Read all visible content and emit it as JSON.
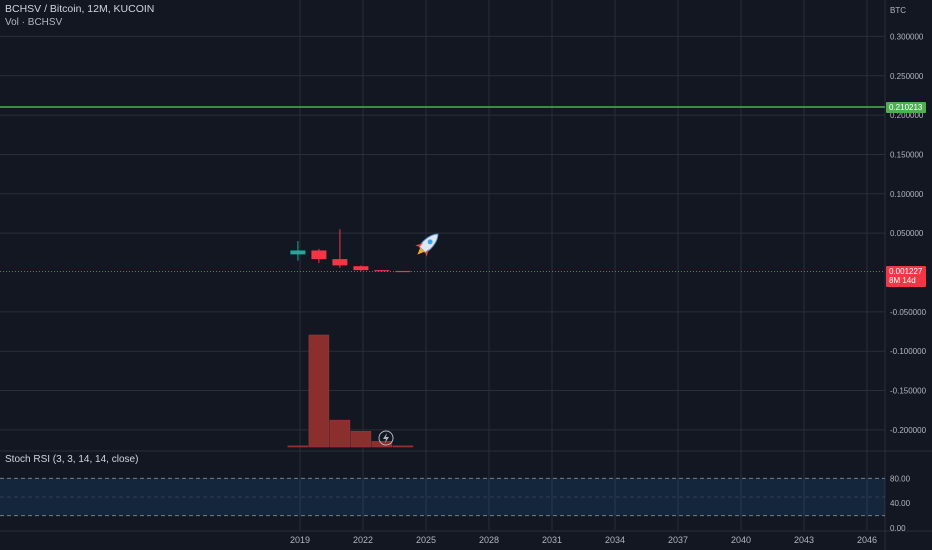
{
  "legend": {
    "title": "BCHSV / Bitcoin, 12M, KUCOIN",
    "volume": "Vol · BCHSV",
    "rsi": "Stoch RSI (3, 3, 14, 14, close)"
  },
  "price_axis": {
    "currency": "BTC",
    "ticks": [
      "0.300000",
      "0.250000",
      "0.200000",
      "0.150000",
      "0.100000",
      "0.050000",
      "-0.050000",
      "-0.100000",
      "-0.150000",
      "-0.200000"
    ]
  },
  "price_tags": {
    "horizontal_line_value": "0.210213",
    "last_price": "0.001227",
    "countdown": "8M 14d"
  },
  "rsi_axis": {
    "ticks": [
      "80.00",
      "40.00",
      "0.00"
    ]
  },
  "time_axis": {
    "ticks": [
      "2019",
      "2022",
      "2025",
      "2028",
      "2031",
      "2034",
      "2037",
      "2040",
      "2043",
      "2046"
    ]
  },
  "colors": {
    "background": "#131722",
    "grid": "#2a2e39",
    "up": "#26a69a",
    "down": "#f23645",
    "horizontal_line": "#4caf50",
    "volume": "#8b2e2e"
  },
  "chart_data": {
    "type": "candlestick",
    "x_unit": "year",
    "ylim": [
      -0.22,
      0.33
    ],
    "candles": [
      {
        "x": 2018.9,
        "open": 0.023,
        "high": 0.04,
        "low": 0.015,
        "close": 0.028,
        "dir": "up"
      },
      {
        "x": 2019.9,
        "open": 0.028,
        "high": 0.03,
        "low": 0.012,
        "close": 0.017,
        "dir": "down"
      },
      {
        "x": 2020.9,
        "open": 0.017,
        "high": 0.055,
        "low": 0.006,
        "close": 0.009,
        "dir": "down"
      },
      {
        "x": 2021.9,
        "open": 0.008,
        "high": 0.009,
        "low": 0.002,
        "close": 0.003,
        "dir": "down"
      },
      {
        "x": 2022.9,
        "open": 0.003,
        "high": 0.003,
        "low": 0.0015,
        "close": 0.002,
        "dir": "down"
      },
      {
        "x": 2023.9,
        "open": 0.002,
        "high": 0.002,
        "low": 0.0012,
        "close": 0.001227,
        "dir": "down"
      }
    ],
    "volume": [
      {
        "x": 2018.9,
        "value": 1
      },
      {
        "x": 2019.9,
        "value": 100
      },
      {
        "x": 2020.9,
        "value": 24
      },
      {
        "x": 2021.9,
        "value": 14
      },
      {
        "x": 2022.9,
        "value": 5
      },
      {
        "x": 2023.9,
        "value": 1
      }
    ],
    "horizontal_line": 0.210213,
    "rsi_levels": [
      80,
      20
    ],
    "rsi_ylim": [
      0,
      100
    ]
  }
}
